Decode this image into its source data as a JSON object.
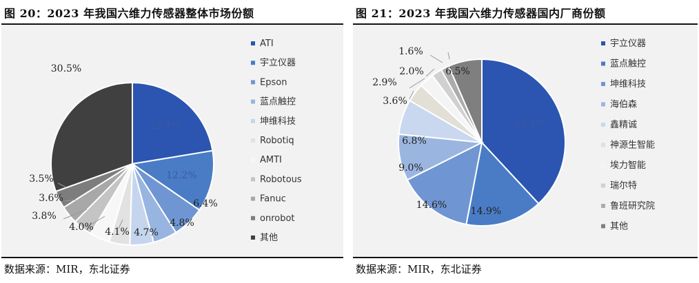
{
  "charts": [
    {
      "figure_title": "图 20：2023 年我国六维力传感器整体市场份额",
      "source": "数据来源：MIR，东北证券"
    },
    {
      "figure_title": "图 21：2023 年我国六维力传感器国内厂商份额",
      "source": "数据来源：MIR，东北证券"
    }
  ],
  "chart_data": [
    {
      "type": "pie",
      "title": "",
      "categories": [
        "ATI",
        "宇立仪器",
        "Epson",
        "蓝点触控",
        "坤维科技",
        "Robotiq",
        "AMTI",
        "Robotous",
        "Fanuc",
        "onrobot",
        "其他"
      ],
      "values": [
        22.4,
        12.2,
        6.4,
        4.8,
        4.7,
        4.1,
        4.0,
        3.8,
        3.6,
        3.5,
        30.5
      ],
      "value_labels": [
        "22.4%",
        "12.2%",
        "6.4%",
        "4.8%",
        "4.7%",
        "4.1%",
        "4.0%",
        "3.8%",
        "3.6%",
        "3.5%",
        "30.5%"
      ],
      "colors": [
        "#2b55b0",
        "#4a7cc6",
        "#6f96d2",
        "#98b4e0",
        "#c6d5ee",
        "#e2e2e2",
        "#f7f7f7",
        "#c4c4c4",
        "#a8a8a8",
        "#7d7d7d",
        "#404040"
      ],
      "legend_position": "right"
    },
    {
      "type": "pie",
      "title": "",
      "categories": [
        "宇立仪器",
        "蓝点触控",
        "坤维科技",
        "海伯森",
        "鑫精诚",
        "神源生智能",
        "埃力智能",
        "瑞尔特",
        "鲁班研究院",
        "其他"
      ],
      "values": [
        38.1,
        14.9,
        14.6,
        9.0,
        6.8,
        3.6,
        2.9,
        2.0,
        1.6,
        6.5
      ],
      "value_labels": [
        "38.1%",
        "14.9%",
        "14.6%",
        "9.0%",
        "6.8%",
        "3.6%",
        "2.9%",
        "2.0%",
        "1.6%",
        "6.5%"
      ],
      "colors": [
        "#2b55b0",
        "#4a7cc6",
        "#6f96d2",
        "#9ab6e0",
        "#c9d8ee",
        "#e2dfd7",
        "#f4f4f4",
        "#d0d0d0",
        "#acacac",
        "#7f7f7f"
      ],
      "legend_position": "right"
    }
  ]
}
